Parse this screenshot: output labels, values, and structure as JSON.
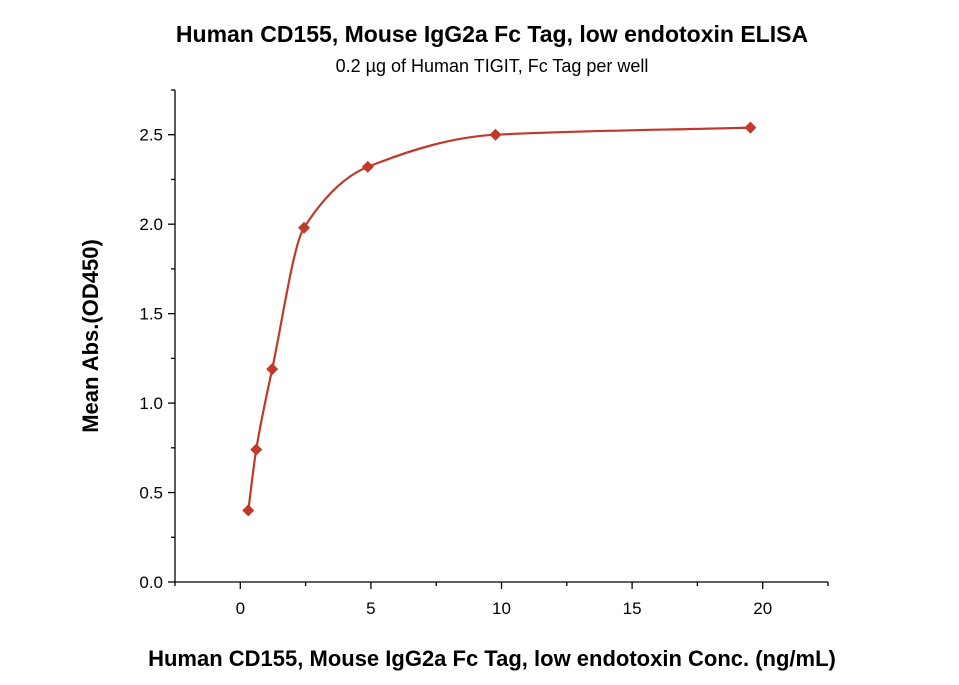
{
  "chart_data": {
    "type": "scatter",
    "title": "Human CD155, Mouse IgG2a Fc Tag, low endotoxin ELISA",
    "subtitle": "0.2 µg of Human TIGIT, Fc Tag per well",
    "xlabel": "Human CD155, Mouse IgG2a Fc Tag, low endotoxin Conc. (ng/mL)",
    "ylabel": "Mean Abs.(OD450)",
    "xlim": [
      -2.5,
      22.5
    ],
    "ylim": [
      0,
      2.75
    ],
    "x_ticks": [
      "0",
      "5",
      "10",
      "15",
      "20"
    ],
    "y_ticks": [
      "0.0",
      "0.5",
      "1.0",
      "1.5",
      "2.0",
      "2.5"
    ],
    "grid": false,
    "colors": {
      "series": "#C0392B",
      "axis": "#000000"
    },
    "series": [
      {
        "marker": "diamond",
        "x": [
          0.305,
          0.61,
          1.22,
          2.44,
          4.88,
          9.77,
          19.53
        ],
        "y": [
          0.4,
          0.74,
          1.19,
          1.98,
          2.32,
          2.5,
          2.54
        ],
        "fit": "four-parameter logistic curve"
      }
    ]
  }
}
